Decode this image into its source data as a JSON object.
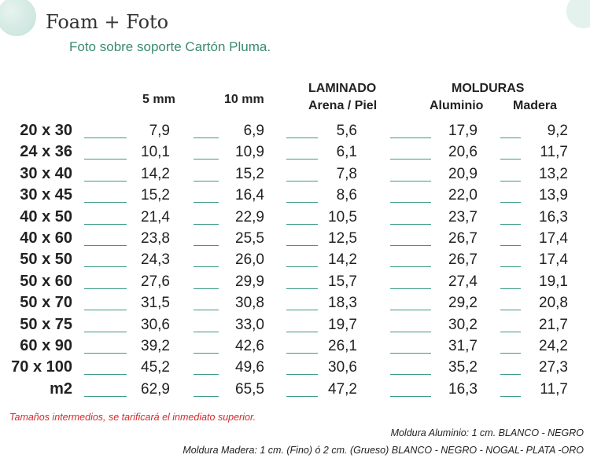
{
  "header": {
    "title": "Foam + Foto",
    "subtitle": "Foto sobre soporte Cartón Pluma."
  },
  "columns": {
    "c5mm": "5 mm",
    "c10mm": "10 mm",
    "laminado": "LAMINADO",
    "arena_piel": "Arena / Piel",
    "molduras": "MOLDURAS",
    "aluminio": "Aluminio",
    "madera": "Madera"
  },
  "rows": [
    {
      "size": "20 x 30",
      "v": [
        "7,9",
        "6,9",
        "5,6",
        "17,9",
        "9,2"
      ]
    },
    {
      "size": "24 x 36",
      "v": [
        "10,1",
        "10,9",
        "6,1",
        "20,6",
        "11,7"
      ]
    },
    {
      "size": "30 x 40",
      "v": [
        "14,2",
        "15,2",
        "7,8",
        "20,9",
        "13,2"
      ]
    },
    {
      "size": "30 x 45",
      "v": [
        "15,2",
        "16,4",
        "8,6",
        "22,0",
        "13,9"
      ]
    },
    {
      "size": "40 x 50",
      "v": [
        "21,4",
        "22,9",
        "10,5",
        "23,7",
        "16,3"
      ]
    },
    {
      "size": "40 x 60",
      "v": [
        "23,8",
        "25,5",
        "12,5",
        "26,7",
        "17,4"
      ]
    },
    {
      "size": "50 x 50",
      "v": [
        "24,3",
        "26,0",
        "14,2",
        "26,7",
        "17,4"
      ]
    },
    {
      "size": "50 x 60",
      "v": [
        "27,6",
        "29,9",
        "15,7",
        "27,4",
        "19,1"
      ]
    },
    {
      "size": "50 x 70",
      "v": [
        "31,5",
        "30,8",
        "18,3",
        "29,2",
        "20,8"
      ]
    },
    {
      "size": "50 x 75",
      "v": [
        "30,6",
        "33,0",
        "19,7",
        "30,2",
        "21,7"
      ]
    },
    {
      "size": "60 x 90",
      "v": [
        "39,2",
        "42,6",
        "26,1",
        "31,7",
        "24,2"
      ]
    },
    {
      "size": "70 x 100",
      "v": [
        "45,2",
        "49,6",
        "30,6",
        "35,2",
        "27,3"
      ]
    },
    {
      "size": "m2",
      "v": [
        "62,9",
        "65,5",
        "47,2",
        "16,3",
        "11,7"
      ]
    }
  ],
  "notes": {
    "intermediate": "Tamaños intermedios, se tarificará el inmediato superior.",
    "aluminio": "Moldura Aluminio: 1 cm. BLANCO - NEGRO",
    "madera": "Moldura Madera: 1 cm. (Fino) ó 2 cm. (Grueso) BLANCO - NEGRO - NOGAL- PLATA -ORO"
  },
  "colors": {
    "accent": "#3a8a73",
    "dash": "#3a9a84",
    "note_red": "#d22a2a"
  }
}
